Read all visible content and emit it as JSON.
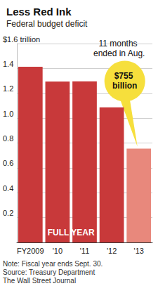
{
  "chart_data": {
    "type": "bar",
    "title": "Less Red Ink",
    "subtitle": "Federal budget deficit",
    "categories": [
      "FY2009",
      "'10",
      "'11",
      "'12",
      "'13"
    ],
    "values": [
      1.413,
      1.294,
      1.296,
      1.087,
      0.755
    ],
    "value_labels": [
      null,
      null,
      null,
      null,
      "$755 billion"
    ],
    "data_labels": true,
    "colors": [
      "#c8393a",
      "#c8393a",
      "#c8393a",
      "#c8393a",
      "#e8887c"
    ],
    "ylim": [
      0,
      1.6
    ],
    "yticks": [
      0.2,
      0.4,
      0.6,
      0.8,
      {
        "value": 1,
        "label": "1.0"
      },
      1.2,
      1.4,
      {
        "value": 1.6,
        "label": "$1.6 trillion"
      }
    ],
    "grid": true,
    "annotations": [
      "11 months ended in Aug.",
      "FULL YEAR"
    ],
    "notes": [
      "Note: Fiscal year ends Sept. 30.",
      "Source: Treasury Department",
      "The Wall Street Journal"
    ]
  }
}
